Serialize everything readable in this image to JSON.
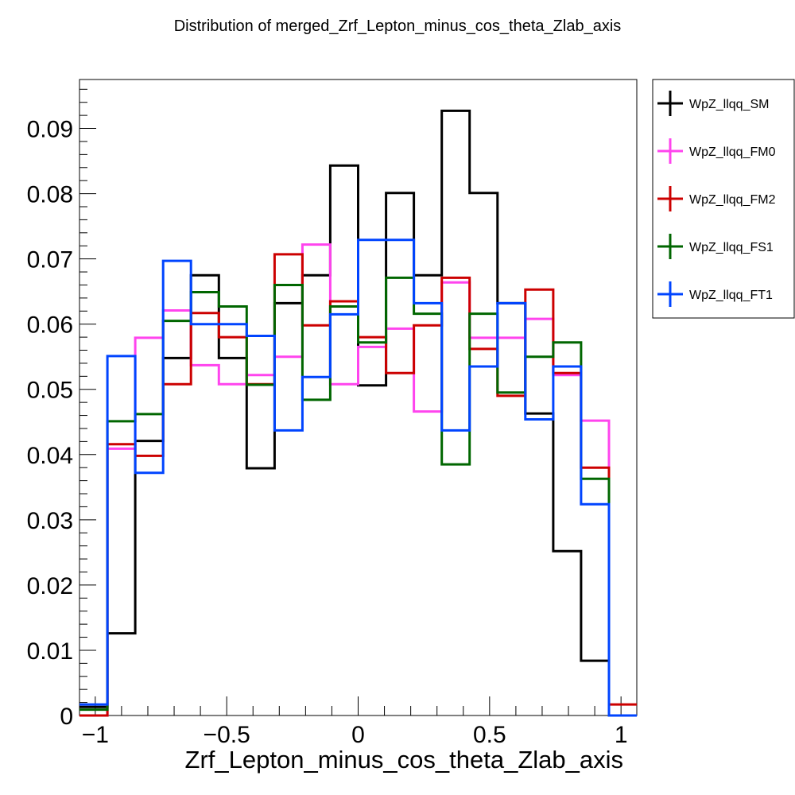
{
  "chart_data": {
    "type": "histogram",
    "title": "Distribution of merged_Zrf_Lepton_minus_cos_theta_Zlab_axis",
    "xlabel": "Zrf_Lepton_minus_cos_theta_Zlab_axis",
    "ylabel": "",
    "xlim": [
      -1.06,
      1.06
    ],
    "ylim": [
      0,
      0.0975
    ],
    "bin_edges": [
      -1.06,
      -0.954,
      -0.848,
      -0.742,
      -0.636,
      -0.53,
      -0.424,
      -0.318,
      -0.212,
      -0.106,
      0.0,
      0.106,
      0.212,
      0.318,
      0.424,
      0.53,
      0.636,
      0.742,
      0.848,
      0.954,
      1.06
    ],
    "xticks": [
      -1,
      -0.5,
      0,
      0.5,
      1
    ],
    "xtick_labels": [
      "−1",
      "−0.5",
      "0",
      "0.5",
      "1"
    ],
    "yticks": [
      0,
      0.01,
      0.02,
      0.03,
      0.04,
      0.05,
      0.06,
      0.07,
      0.08,
      0.09
    ],
    "ytick_labels": [
      "0",
      "0.01",
      "0.02",
      "0.03",
      "0.04",
      "0.05",
      "0.06",
      "0.07",
      "0.08",
      "0.09"
    ],
    "legend_position": "right, outside plot area",
    "series": [
      {
        "name": "WpZ_llqq_SM",
        "color": "#000000",
        "values": [
          0.0013,
          0.0126,
          0.0421,
          0.0548,
          0.0675,
          0.0548,
          0.0379,
          0.0632,
          0.0675,
          0.0843,
          0.0506,
          0.0801,
          0.0675,
          0.0927,
          0.0801,
          0.0632,
          0.0463,
          0.0252,
          0.0084,
          0.0
        ]
      },
      {
        "name": "WpZ_llqq_FM0",
        "color": "#ff44ee",
        "values": [
          0.0,
          0.0409,
          0.0579,
          0.0621,
          0.0537,
          0.0508,
          0.0522,
          0.055,
          0.0722,
          0.0508,
          0.0565,
          0.0593,
          0.0466,
          0.0664,
          0.0579,
          0.0579,
          0.0608,
          0.0522,
          0.0452,
          0.0
        ]
      },
      {
        "name": "WpZ_llqq_FM2",
        "color": "#cc0000",
        "values": [
          0.0,
          0.0416,
          0.0398,
          0.0508,
          0.0617,
          0.058,
          0.0508,
          0.0707,
          0.0598,
          0.0635,
          0.058,
          0.0525,
          0.0598,
          0.0671,
          0.0562,
          0.049,
          0.0653,
          0.0525,
          0.038,
          0.0017
        ]
      },
      {
        "name": "WpZ_llqq_FS1",
        "color": "#006600",
        "values": [
          0.0009,
          0.0451,
          0.0462,
          0.0605,
          0.0649,
          0.0627,
          0.0507,
          0.066,
          0.0484,
          0.0627,
          0.0572,
          0.0671,
          0.0616,
          0.0385,
          0.0616,
          0.0495,
          0.055,
          0.0572,
          0.0363,
          0.0
        ]
      },
      {
        "name": "WpZ_llqq_FT1",
        "color": "#0044ff",
        "values": [
          0.0017,
          0.0551,
          0.0372,
          0.0697,
          0.06,
          0.06,
          0.0582,
          0.0437,
          0.0519,
          0.0615,
          0.0729,
          0.0729,
          0.0632,
          0.0437,
          0.0535,
          0.0632,
          0.0454,
          0.0535,
          0.0324,
          0.0
        ]
      }
    ]
  }
}
